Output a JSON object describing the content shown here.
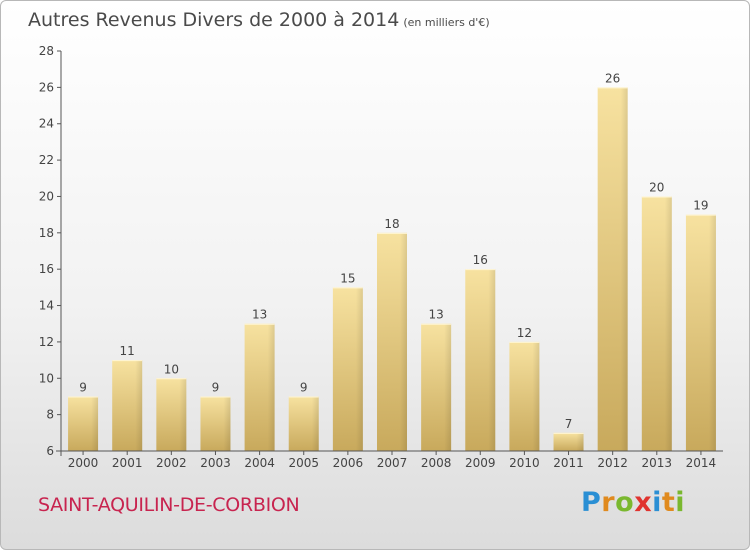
{
  "title": "Autres Revenus Divers de 2000 à 2014",
  "title_unit": "(en milliers d'€)",
  "commune": "SAINT-AQUILIN-DE-CORBION",
  "logo": {
    "letters": [
      "P",
      "r",
      "o",
      "x",
      "i",
      "t",
      "i"
    ],
    "colors": [
      "#2a8fd4",
      "#e08a1e",
      "#7ab82f",
      "#e0332f",
      "#2a8fd4",
      "#e08a1e",
      "#7ab82f"
    ]
  },
  "colors": {
    "bar_light": "#f7e2a0",
    "bar_dark": "#c8a95c",
    "axis": "#555555",
    "commune": "#c8244f"
  },
  "chart_data": {
    "type": "bar",
    "categories": [
      "2000",
      "2001",
      "2002",
      "2003",
      "2004",
      "2005",
      "2006",
      "2007",
      "2008",
      "2009",
      "2010",
      "2011",
      "2012",
      "2013",
      "2014"
    ],
    "values": [
      9,
      11,
      10,
      9,
      13,
      9,
      15,
      18,
      13,
      16,
      12,
      7,
      26,
      20,
      19
    ],
    "ylim": [
      6,
      28
    ],
    "yticks": [
      6,
      8,
      10,
      12,
      14,
      16,
      18,
      20,
      22,
      24,
      26,
      28
    ],
    "grid": false,
    "data_labels": true
  }
}
